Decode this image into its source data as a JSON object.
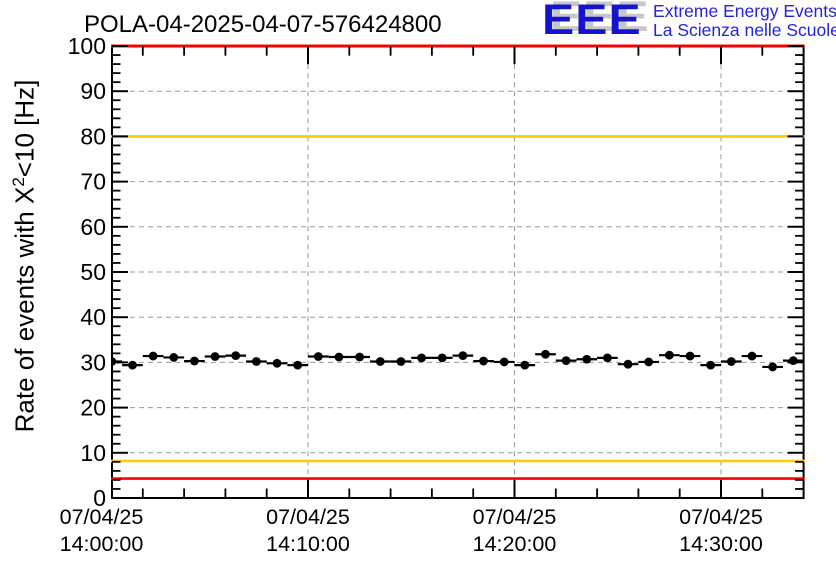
{
  "header": {
    "title": "POLA-04-2025-04-07-576424800",
    "logo": {
      "acronym": "EEE",
      "line1": "Extreme Energy Events",
      "line2": "La Scienza nelle Scuole",
      "blue": "#1414cc",
      "shadow_gray": "#c7c7c7"
    }
  },
  "chart_data": {
    "type": "line",
    "title": "POLA-04-2025-04-07-576424800",
    "ylabel": {
      "prefix": "Rate of events with X",
      "sup": "2",
      "suffix": "<10 [Hz]"
    },
    "ylim": [
      0,
      100
    ],
    "y_major_step": 10,
    "y_minor_step": 2,
    "x_minutes_range": [
      0.5,
      34.0
    ],
    "x_minor_step_minutes": 2,
    "x_major_ticks": [
      {
        "minute": 0,
        "date": "07/04/25",
        "time": "14:00:00"
      },
      {
        "minute": 10,
        "date": "07/04/25",
        "time": "14:10:00"
      },
      {
        "minute": 20,
        "date": "07/04/25",
        "time": "14:20:00"
      },
      {
        "minute": 30,
        "date": "07/04/25",
        "time": "14:30:00"
      }
    ],
    "grid": {
      "show": true,
      "color": "#9a9a9a",
      "dash": "5,4"
    },
    "threshold_lines": [
      {
        "value": 100,
        "color": "#ff0000"
      },
      {
        "value": 80,
        "color": "#ffcc00"
      },
      {
        "value": 8.2,
        "color": "#ffcc00"
      },
      {
        "value": 4.3,
        "color": "#ff0000"
      }
    ],
    "series": [
      {
        "name": "rate",
        "marker": "filled-circle",
        "color": "#000000",
        "x_error_minutes": 0.5,
        "y_error_hz": 0.8,
        "x_minutes": [
          0.5,
          1.5,
          2.5,
          3.5,
          4.5,
          5.5,
          6.5,
          7.5,
          8.5,
          9.5,
          10.5,
          11.5,
          12.5,
          13.5,
          14.5,
          15.5,
          16.5,
          17.5,
          18.5,
          19.5,
          20.5,
          21.5,
          22.5,
          23.5,
          24.5,
          25.5,
          26.5,
          27.5,
          28.5,
          29.5,
          30.5,
          31.5,
          32.5,
          33.5
        ],
        "values": [
          30.2,
          29.4,
          31.4,
          31.1,
          30.3,
          31.3,
          31.5,
          30.2,
          29.8,
          29.4,
          31.3,
          31.2,
          31.2,
          30.2,
          30.2,
          31.0,
          31.0,
          31.5,
          30.3,
          30.1,
          29.4,
          31.8,
          30.4,
          30.7,
          31.0,
          29.6,
          30.1,
          31.6,
          31.4,
          29.4,
          30.2,
          31.4,
          29.0,
          30.4
        ]
      }
    ]
  }
}
